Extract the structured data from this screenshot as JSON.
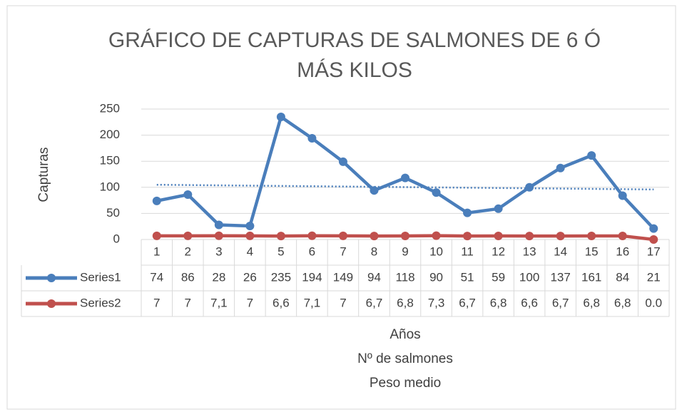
{
  "chart_data": {
    "type": "line",
    "title": "GRÁFICO DE CAPTURAS DE SALMONES DE 6 Ó",
    "title_line2": "MÁS KILOS",
    "y_label": "Capturas",
    "x_label_lines": [
      "Años",
      "Nº de salmones",
      "Peso medio"
    ],
    "categories": [
      "1",
      "2",
      "3",
      "4",
      "5",
      "6",
      "7",
      "8",
      "9",
      "10",
      "11",
      "12",
      "13",
      "14",
      "15",
      "16",
      "17"
    ],
    "series": [
      {
        "name": "Series1",
        "color": "#4a7ebb",
        "trendline": "linear",
        "values": [
          74,
          86,
          28,
          26,
          235,
          194,
          149,
          94,
          118,
          90,
          51,
          59,
          100,
          137,
          161,
          84,
          21
        ]
      },
      {
        "name": "Series2",
        "color": "#c0504d",
        "values": [
          7,
          7,
          7.1,
          7,
          6.6,
          7.1,
          7,
          6.7,
          6.8,
          7.3,
          6.7,
          6.8,
          6.6,
          6.7,
          6.8,
          6.8,
          0
        ],
        "value_labels": [
          "7",
          "7",
          "7,1",
          "7",
          "6,6",
          "7,1",
          "7",
          "6,7",
          "6,8",
          "7,3",
          "6,7",
          "6,8",
          "6,6",
          "6,7",
          "6,8",
          "6,8",
          "0.0"
        ]
      }
    ],
    "ylim": [
      0,
      250
    ],
    "yticks": [
      0,
      50,
      100,
      150,
      200,
      250
    ],
    "grid": true,
    "data_table": true
  }
}
